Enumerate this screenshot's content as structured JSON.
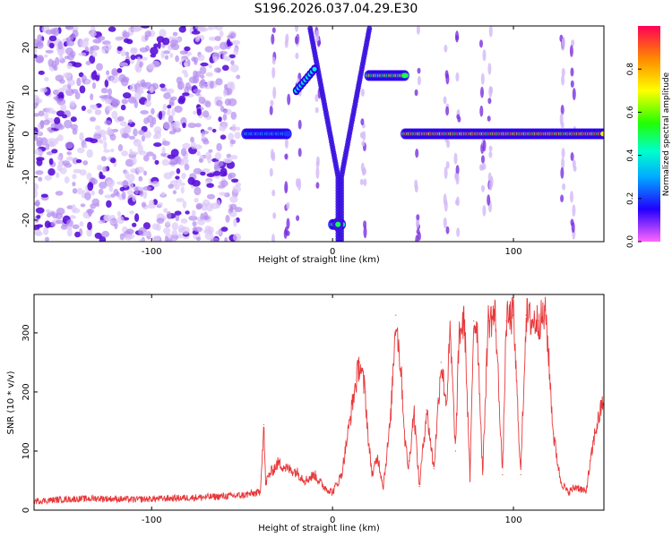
{
  "title": "S196.2026.037.04.29.E30",
  "chart_data": [
    {
      "type": "heatmap",
      "title": "S196.2026.037.04.29.E30",
      "xlabel": "Height of straight line (km)",
      "ylabel": "Frequency (Hz)",
      "xlim": [
        -165,
        150
      ],
      "ylim": [
        -25,
        25
      ],
      "x_ticks": [
        "-100",
        "0",
        "100"
      ],
      "y_ticks": [
        "-20",
        "-10",
        "0",
        "10",
        "20"
      ],
      "colorbar": {
        "label": "Normalized spectral amplitude",
        "range": [
          0,
          1
        ],
        "ticks": [
          "0.0",
          "0.2",
          "0.4",
          "0.6",
          "0.8"
        ],
        "colormap": "rainbow (magenta-blue-cyan-green-yellow-red)"
      },
      "features": [
        {
          "x_range": [
            -165,
            -50
          ],
          "freq": [
            -25,
            25
          ],
          "amplitude": 0.1
        },
        {
          "x_range": [
            -48,
            -25
          ],
          "freq": 0,
          "amplitude": 0.35
        },
        {
          "x_range": [
            -20,
            -10
          ],
          "freq": [
            10,
            15
          ],
          "amplitude": 0.4
        },
        {
          "x_range": [
            -5,
            10
          ],
          "freq": [
            -25,
            25
          ],
          "amplitude": 0.15
        },
        {
          "x_range": [
            0,
            5
          ],
          "freq": -21,
          "amplitude": 0.5
        },
        {
          "x_range": [
            20,
            40
          ],
          "freq": 13.5,
          "amplitude": 0.7
        },
        {
          "x_range": [
            40,
            150
          ],
          "freq": 0,
          "amplitude": 0.9
        }
      ]
    },
    {
      "type": "line",
      "xlabel": "Height of straight line (km)",
      "ylabel": "SNR (10 * v/v)",
      "xlim": [
        -165,
        150
      ],
      "ylim": [
        0,
        365
      ],
      "x_ticks": [
        "-100",
        "0",
        "100"
      ],
      "y_ticks": [
        "0",
        "100",
        "200",
        "300"
      ],
      "color": "#e8383a",
      "x": [
        -165,
        -150,
        -130,
        -110,
        -90,
        -70,
        -50,
        -40,
        -38,
        -37,
        -35,
        -30,
        -25,
        -20,
        -15,
        -10,
        -5,
        0,
        5,
        8,
        12,
        15,
        18,
        20,
        22,
        25,
        28,
        32,
        35,
        38,
        40,
        42,
        45,
        48,
        52,
        56,
        60,
        63,
        65,
        68,
        70,
        73,
        76,
        78,
        80,
        83,
        86,
        90,
        94,
        96,
        100,
        104,
        107,
        110,
        114,
        118,
        122,
        126,
        130,
        135,
        140,
        145,
        150
      ],
      "y": [
        15,
        18,
        20,
        18,
        20,
        22,
        25,
        30,
        145,
        45,
        60,
        80,
        70,
        65,
        50,
        60,
        40,
        30,
        60,
        120,
        200,
        250,
        200,
        110,
        60,
        90,
        40,
        150,
        330,
        230,
        120,
        70,
        170,
        40,
        170,
        70,
        250,
        180,
        300,
        100,
        300,
        320,
        50,
        320,
        310,
        60,
        320,
        330,
        60,
        320,
        330,
        60,
        330,
        320,
        320,
        330,
        130,
        50,
        30,
        40,
        30,
        130,
        190
      ]
    }
  ]
}
